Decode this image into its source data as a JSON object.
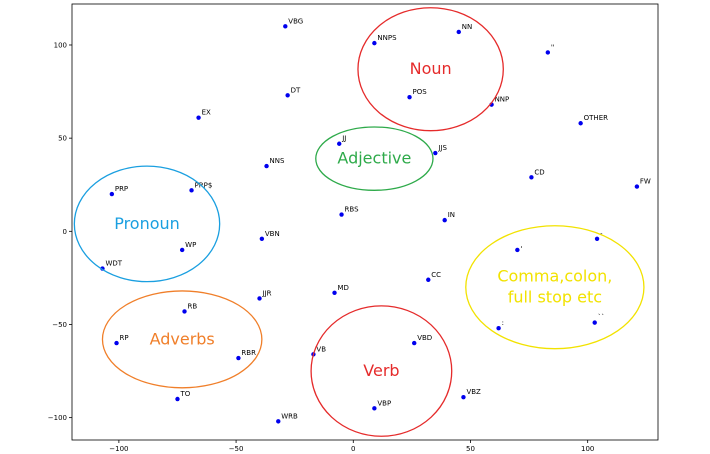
{
  "chart_data": {
    "type": "scatter",
    "title": "",
    "xlabel": "",
    "ylabel": "",
    "xlim": [
      -120,
      130
    ],
    "ylim": [
      -112,
      122
    ],
    "xticks": [
      -100,
      -50,
      0,
      50,
      100
    ],
    "xtick_labels": [
      "−100",
      "−50",
      "0",
      "50",
      "100"
    ],
    "yticks": [
      -100,
      -50,
      0,
      50,
      100
    ],
    "ytick_labels": [
      "−100",
      "−50",
      "0",
      "50",
      "100"
    ],
    "grid": false,
    "point_color": "#0000ee",
    "points": [
      {
        "label": "VBG",
        "x": -29,
        "y": 110
      },
      {
        "label": "NN",
        "x": 45,
        "y": 107
      },
      {
        "label": "NNPS",
        "x": 9,
        "y": 101
      },
      {
        "label": "''",
        "x": 83,
        "y": 96
      },
      {
        "label": "DT",
        "x": -28,
        "y": 73
      },
      {
        "label": "POS",
        "x": 24,
        "y": 72
      },
      {
        "label": "NNP",
        "x": 59,
        "y": 68
      },
      {
        "label": "EX",
        "x": -66,
        "y": 61
      },
      {
        "label": "OTHER",
        "x": 97,
        "y": 58
      },
      {
        "label": "JJ",
        "x": -6,
        "y": 47
      },
      {
        "label": "JJS",
        "x": 35,
        "y": 42
      },
      {
        "label": "NNS",
        "x": -37,
        "y": 35
      },
      {
        "label": "CD",
        "x": 76,
        "y": 29
      },
      {
        "label": "FW",
        "x": 121,
        "y": 24
      },
      {
        "label": "PRP",
        "x": -103,
        "y": 20
      },
      {
        "label": "PRP$",
        "x": -69,
        "y": 22
      },
      {
        "label": "RBS",
        "x": -5,
        "y": 9
      },
      {
        "label": "IN",
        "x": 39,
        "y": 6
      },
      {
        "label": "VBN",
        "x": -39,
        "y": -4
      },
      {
        "label": "-",
        "x": 104,
        "y": -4
      },
      {
        "label": "WP",
        "x": -73,
        "y": -10
      },
      {
        "label": ",",
        "x": 70,
        "y": -10
      },
      {
        "label": "WDT",
        "x": -107,
        "y": -20
      },
      {
        "label": "CC",
        "x": 32,
        "y": -26
      },
      {
        "label": "MD",
        "x": -8,
        "y": -33
      },
      {
        "label": "JJR",
        "x": -40,
        "y": -36
      },
      {
        "label": "RB",
        "x": -72,
        "y": -43
      },
      {
        "label": ":",
        "x": 62,
        "y": -52
      },
      {
        "label": "``",
        "x": 103,
        "y": -49
      },
      {
        "label": "RP",
        "x": -101,
        "y": -60
      },
      {
        "label": "VBD",
        "x": 26,
        "y": -60
      },
      {
        "label": "VB",
        "x": -17,
        "y": -66
      },
      {
        "label": "RBR",
        "x": -49,
        "y": -68
      },
      {
        "label": "TO",
        "x": -75,
        "y": -90
      },
      {
        "label": "VBZ",
        "x": 47,
        "y": -89
      },
      {
        "label": "VBP",
        "x": 9,
        "y": -95
      },
      {
        "label": "WRB",
        "x": -32,
        "y": -102
      }
    ],
    "clusters": [
      {
        "name": "Noun",
        "color": "#e52b2b",
        "cx": 33,
        "cy": 87,
        "rx": 31,
        "ry": 33
      },
      {
        "name": "Adjective",
        "color": "#2eaa4a",
        "cx": 9,
        "cy": 39,
        "rx": 25,
        "ry": 17
      },
      {
        "name": "Pronoun",
        "color": "#1a9fe0",
        "cx": -88,
        "cy": 4,
        "rx": 31,
        "ry": 31
      },
      {
        "name": "Comma,colon,\nfull stop etc",
        "color": "#f2e200",
        "cx": 86,
        "cy": -30,
        "rx": 38,
        "ry": 33
      },
      {
        "name": "Adverbs",
        "color": "#f07f2a",
        "cx": -73,
        "cy": -58,
        "rx": 34,
        "ry": 26
      },
      {
        "name": "Verb",
        "color": "#e52b2b",
        "cx": 12,
        "cy": -75,
        "rx": 30,
        "ry": 35
      }
    ]
  }
}
